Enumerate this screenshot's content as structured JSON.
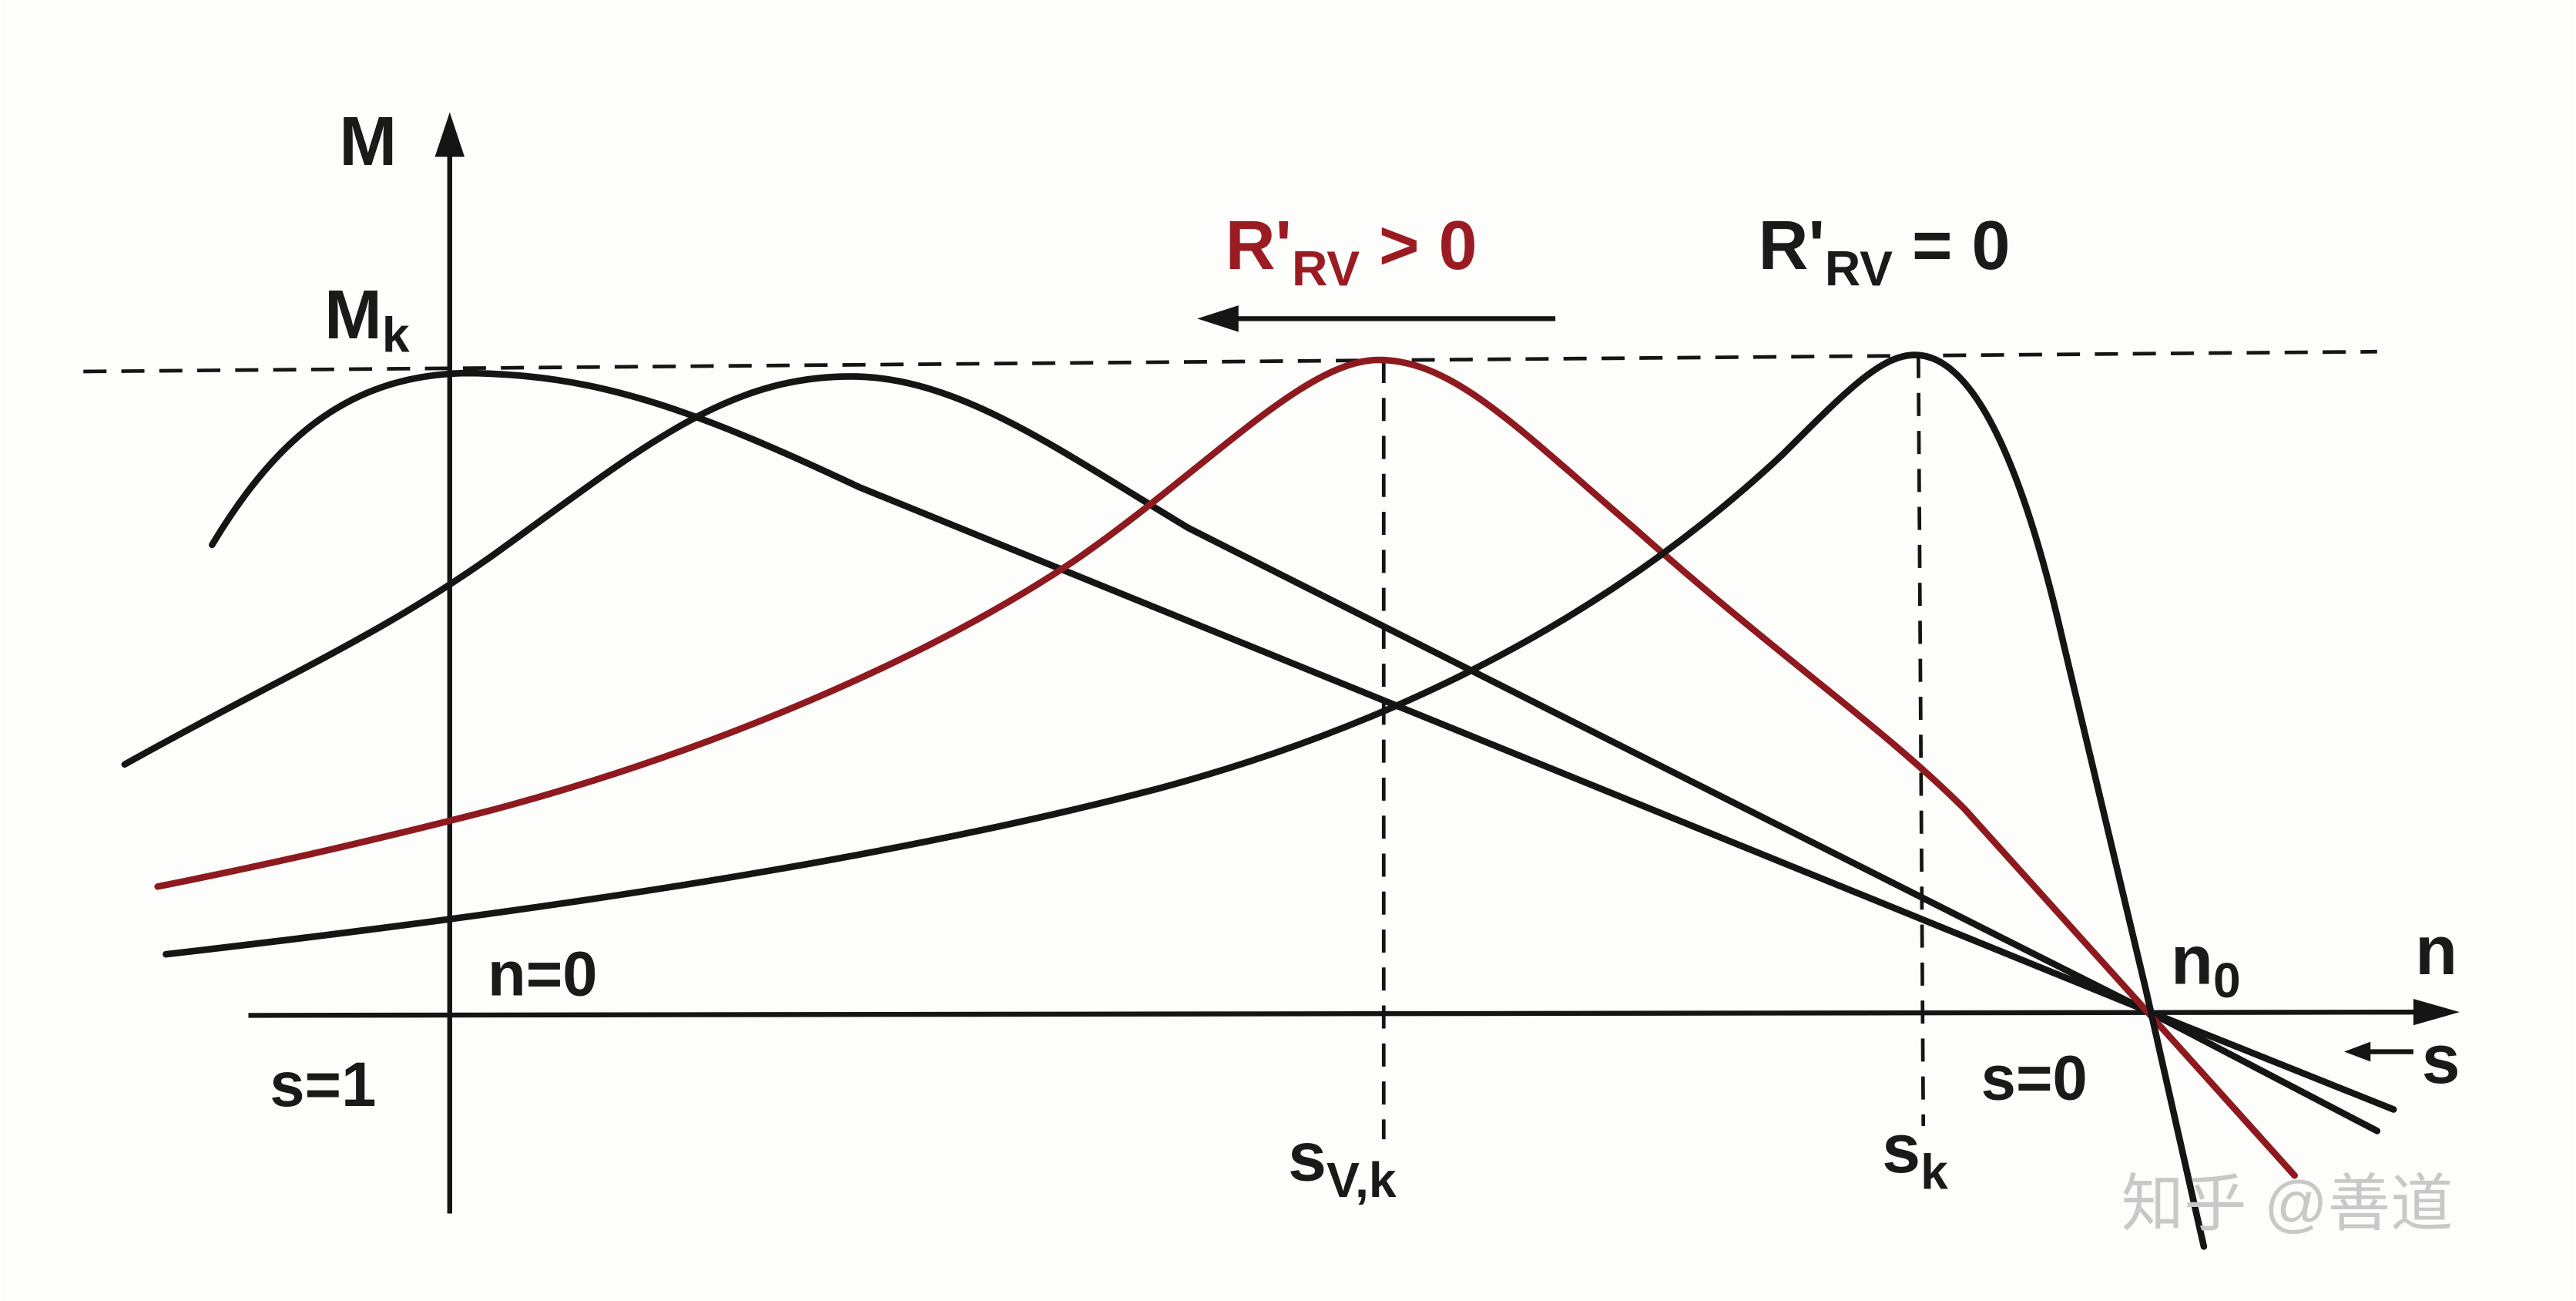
{
  "axes": {
    "y_label": "M",
    "x_label_n": "n",
    "x_label_s": "s"
  },
  "labels": {
    "max_torque": {
      "base": "M",
      "sub": "k"
    },
    "rotor_resistance_positive": {
      "base": "R'",
      "sub": "RV",
      "rest": " > 0"
    },
    "rotor_resistance_zero": {
      "base": "R'",
      "sub": "RV",
      "rest": " = 0"
    },
    "n_zero": "n=0",
    "s_one": "s=1",
    "slip_v_k": {
      "base": "s",
      "sub": "V,k"
    },
    "slip_k": {
      "base": "s",
      "sub": "k"
    },
    "s_zero": "s=0",
    "synchronous_speed": {
      "base": "n",
      "sub": "0"
    }
  },
  "watermark": "知乎 @善道"
}
